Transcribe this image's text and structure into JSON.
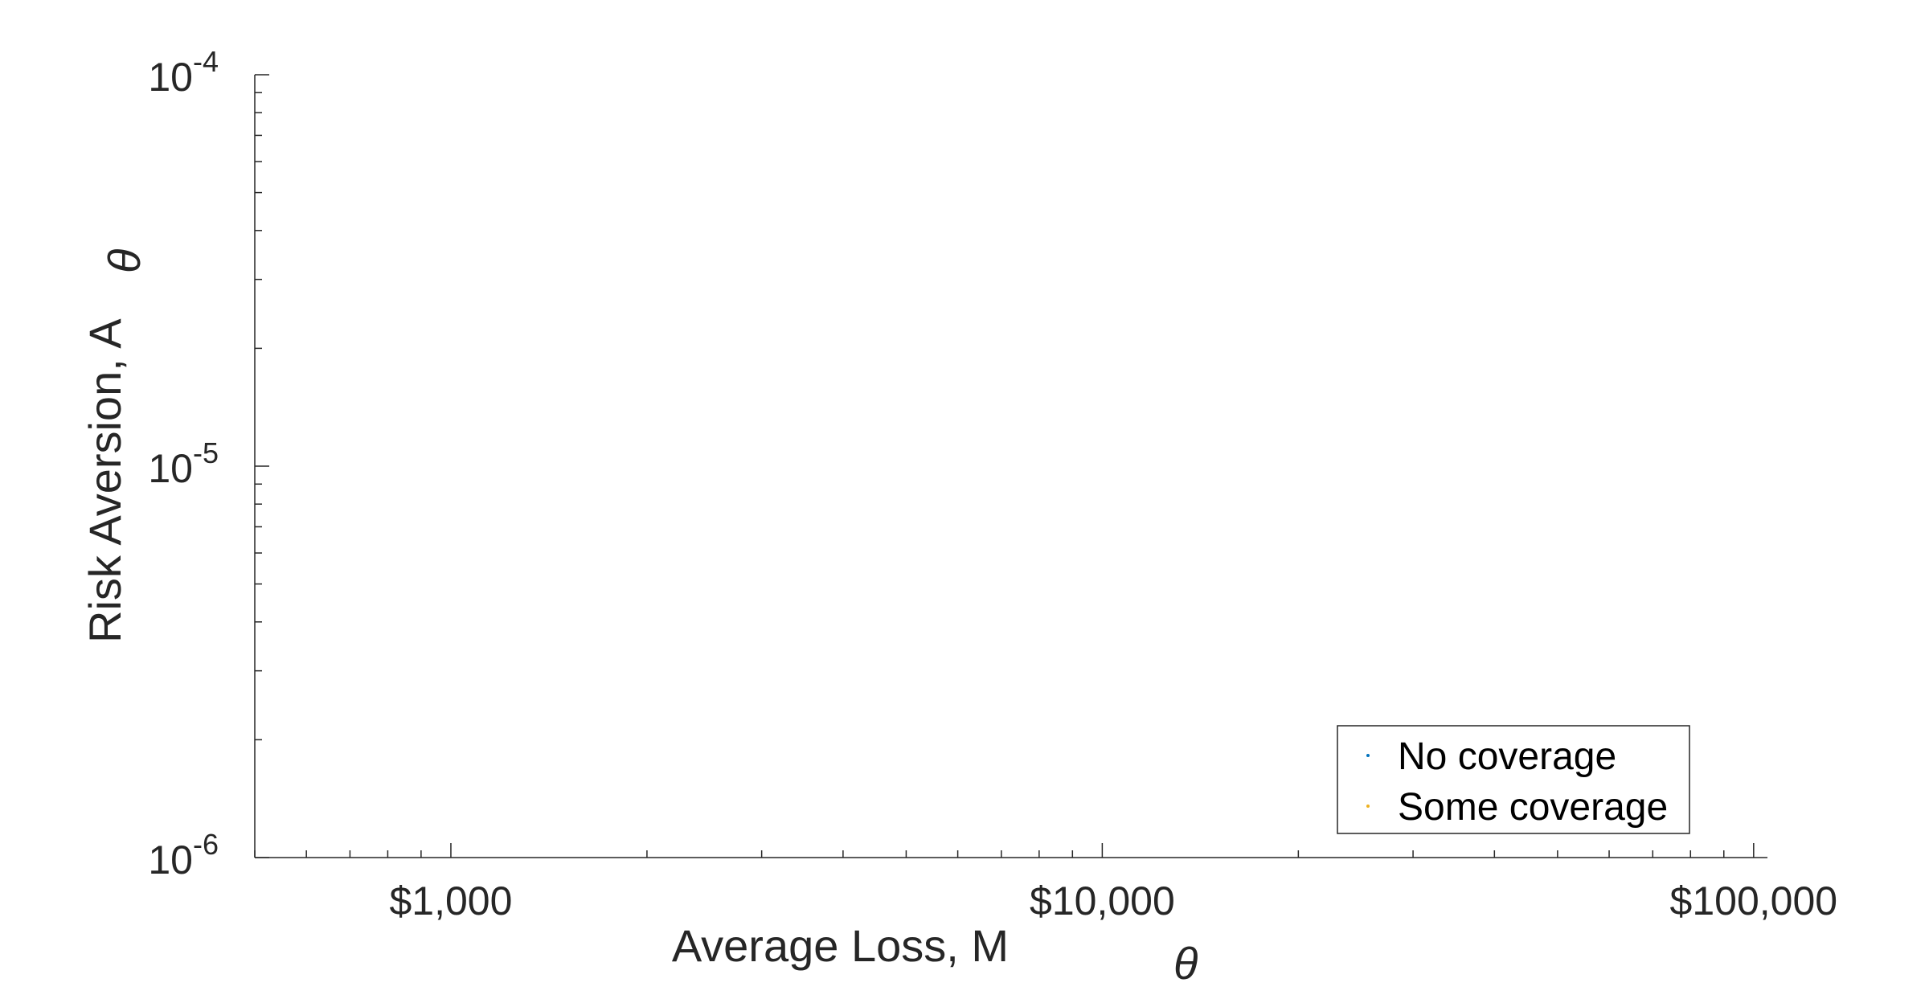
{
  "chart_data": {
    "type": "scatter",
    "xlabel": "Average Loss,  M",
    "xlabel_sub": "θ",
    "ylabel": "Risk Aversion, A",
    "ylabel_sub": "θ",
    "x_scale": "log",
    "y_scale": "log",
    "xlim": [
      500,
      105000
    ],
    "ylim": [
      1e-06,
      0.0001
    ],
    "x_ticks": [
      {
        "value": 1000,
        "label": "$1,000"
      },
      {
        "value": 10000,
        "label": "$10,000"
      },
      {
        "value": 100000,
        "label": "$100,000"
      }
    ],
    "y_ticks": [
      {
        "value": 1e-06,
        "base": "10",
        "exp": "-6"
      },
      {
        "value": 1e-05,
        "base": "10",
        "exp": "-5"
      },
      {
        "value": 0.0001,
        "base": "10",
        "exp": "-4"
      }
    ],
    "grid": false,
    "legend_position": "bottom-right",
    "series": [
      {
        "name": "No coverage",
        "color": "#0072BD",
        "points": []
      },
      {
        "name": "Some coverage",
        "color": "#EDB120",
        "points": []
      }
    ]
  }
}
